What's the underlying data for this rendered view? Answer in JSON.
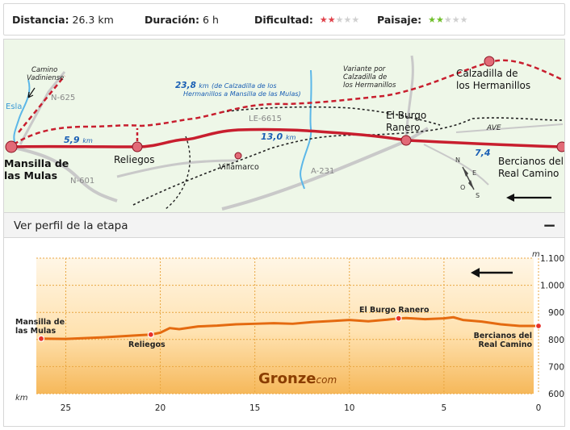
{
  "stats": {
    "distance": {
      "label": "Distancia:",
      "value": "26.3 km"
    },
    "duration": {
      "label": "Duración:",
      "value": "6 h"
    },
    "difficulty": {
      "label": "Dificultad:",
      "rating": 2,
      "max": 5,
      "color": "#e0414a"
    },
    "landscape": {
      "label": "Paisaje:",
      "rating": 2,
      "max": 5,
      "color": "#6fbf2a"
    }
  },
  "map": {
    "places": {
      "mansilla": "Mansilla de",
      "mansilla2": "las Mulas",
      "reliegos": "Reliegos",
      "villamarco": "Villamarco",
      "burgo": "El Burgo",
      "burgo2": "Ranero",
      "calzadilla": "Calzadilla de",
      "calzadilla2": "los Hermanillos",
      "bercianos": "Bercianos del",
      "bercianos2": "Real Camino"
    },
    "roads": {
      "n625": "N-625",
      "n601": "N-601",
      "le6615": "LE-6615",
      "a231": "A-231",
      "ave": "AVE"
    },
    "rivers": {
      "esla": "Esla"
    },
    "notes": {
      "vadiniense": "Camino",
      "vadiniense2": "Vadiniense",
      "variante": "Variante por",
      "variante2": "Calzadilla de",
      "variante3": "los Hermanillos",
      "route_desc": "(de Calzadilla de los",
      "route_desc2": "Hermanillos a Mansilla de las Mulas)"
    },
    "distances": {
      "d1": "5,9",
      "d2": "13,0",
      "d3": "7,4",
      "d4": "23,8",
      "unit": "km"
    },
    "compass": {
      "n": "N",
      "s": "S",
      "e": "E",
      "o": "O"
    }
  },
  "profile": {
    "title": "Ver perfil de la etapa",
    "collapse": "−",
    "brand": "Gronze",
    "brand_suffix": "com",
    "y_unit": "m",
    "x_unit": "km",
    "y_ticks": [
      "1.100",
      "1.000",
      "900",
      "800",
      "700",
      "600"
    ],
    "x_ticks": [
      "25",
      "20",
      "15",
      "10",
      "5",
      "0"
    ],
    "labels": {
      "mansilla": "Mansilla de",
      "mansilla2": "las Mulas",
      "reliegos": "Reliegos",
      "burgo": "El Burgo Ranero",
      "bercianos": "Bercianos del",
      "bercianos2": "Real Camino"
    }
  },
  "chart_data": {
    "type": "area",
    "title": "",
    "xlabel": "km",
    "ylabel": "m",
    "xlim": [
      26.3,
      0
    ],
    "ylim": [
      600,
      1100
    ],
    "x": [
      26.3,
      25,
      24,
      23,
      22,
      21,
      20.5,
      20,
      19.5,
      19,
      18,
      17,
      16,
      15,
      14,
      13,
      12,
      11,
      10,
      9,
      8,
      7.5,
      7,
      6,
      5,
      4.5,
      4,
      3,
      2,
      1,
      0
    ],
    "y": [
      803,
      802,
      805,
      808,
      812,
      816,
      818,
      825,
      842,
      838,
      848,
      851,
      856,
      858,
      860,
      858,
      864,
      868,
      872,
      867,
      873,
      877,
      879,
      875,
      878,
      882,
      872,
      866,
      856,
      850,
      850
    ],
    "markers": [
      {
        "x": 26.3,
        "y": 803,
        "label": "Mansilla de las Mulas"
      },
      {
        "x": 20.5,
        "y": 818,
        "label": "Reliegos"
      },
      {
        "x": 7.4,
        "y": 878,
        "label": "El Burgo Ranero"
      },
      {
        "x": 0,
        "y": 850,
        "label": "Bercianos del Real Camino"
      }
    ]
  }
}
